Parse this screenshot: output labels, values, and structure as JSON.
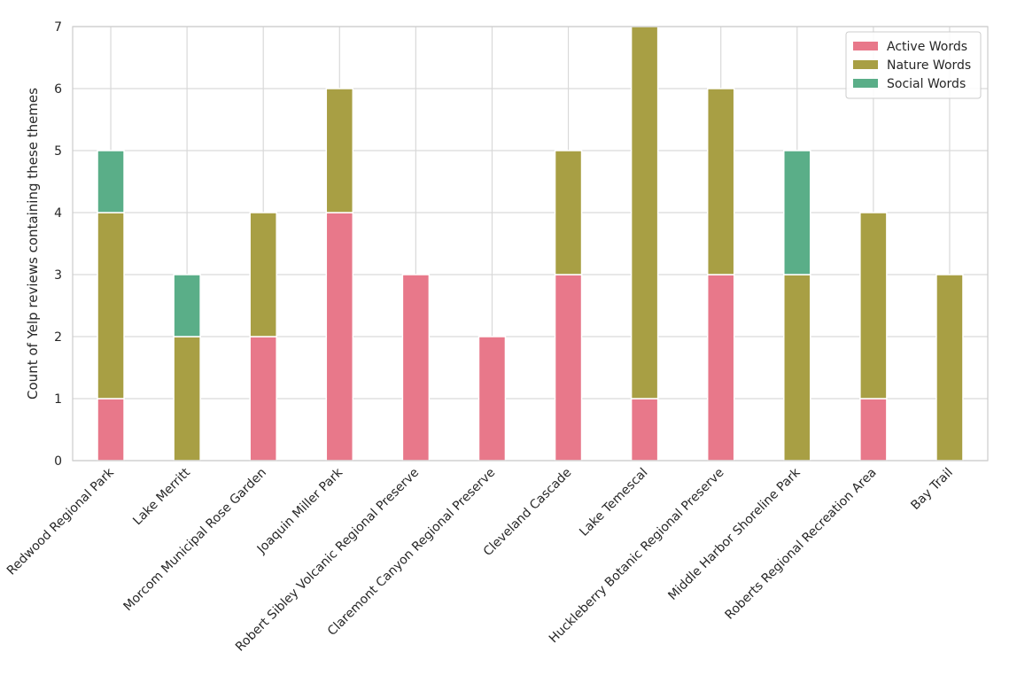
{
  "chart_data": {
    "type": "bar",
    "stacked": true,
    "title": "",
    "xlabel": "",
    "ylabel": "Count of Yelp reviews containing these themes",
    "ylim": [
      0,
      7
    ],
    "yticks": [
      0,
      1,
      2,
      3,
      4,
      5,
      6,
      7
    ],
    "grid": true,
    "legend_position": "top-right",
    "categories": [
      "Redwood Regional Park",
      "Lake Merritt",
      "Morcom Municipal Rose Garden",
      "Joaquin Miller Park",
      "Robert Sibley Volcanic Regional Preserve",
      "Claremont Canyon Regional Preserve",
      "Cleveland Cascade",
      "Lake Temescal",
      "Huckleberry Botanic Regional Preserve",
      "Middle Harbor Shoreline Park",
      "Roberts Regional Recreation Area",
      "Bay Trail"
    ],
    "series": [
      {
        "name": "Active Words",
        "color": "#e8788a",
        "values": [
          1,
          0,
          2,
          4,
          3,
          2,
          3,
          1,
          3,
          0,
          1,
          0
        ]
      },
      {
        "name": "Nature Words",
        "color": "#a89f44",
        "values": [
          3,
          2,
          2,
          2,
          0,
          0,
          2,
          6,
          3,
          3,
          3,
          3
        ]
      },
      {
        "name": "Social Words",
        "color": "#5aae88",
        "values": [
          1,
          1,
          0,
          0,
          0,
          0,
          0,
          0,
          0,
          2,
          0,
          0
        ]
      }
    ]
  },
  "colors": {
    "grid": "#d9d9d9",
    "frame": "#cccccc",
    "background": "#ffffff"
  }
}
